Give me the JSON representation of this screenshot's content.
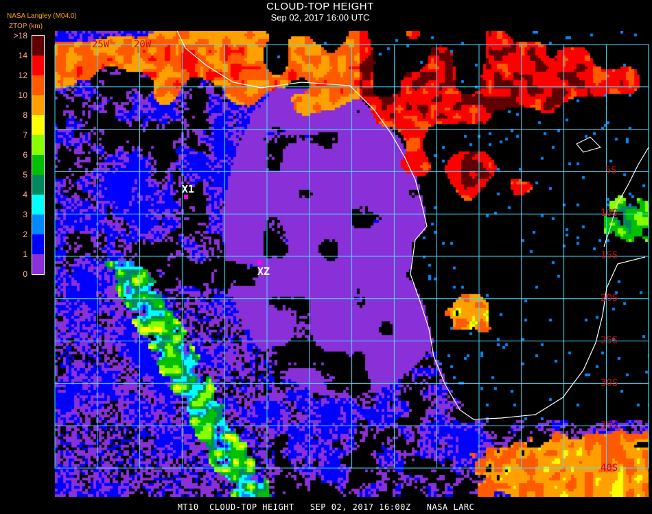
{
  "header": {
    "title": "CLOUD-TOP HEIGHT",
    "subtitle": "Sep 02, 2017 16:00 UTC"
  },
  "legend": {
    "source": "NASA Langley (M04.0)",
    "unit": "ZTOP (km)",
    "ticks": [
      ">18",
      "14",
      "12",
      "10",
      "8",
      "7",
      "6",
      "5",
      "4",
      "3",
      "2",
      "1",
      "0"
    ],
    "colors": [
      "#600000",
      "#ff0000",
      "#ff5a00",
      "#ffa000",
      "#ffff00",
      "#88ff00",
      "#00c000",
      "#008860",
      "#00ffff",
      "#0088ff",
      "#0000ff",
      "#8a30d8"
    ]
  },
  "map": {
    "grid_color": "#40e0ff",
    "coast_color": "#ffffff",
    "longitude_labels": [
      "25W",
      "20W"
    ],
    "latitude_labels": [
      "5S",
      "10S",
      "15S",
      "20S",
      "25S",
      "30S",
      "35S",
      "40S"
    ],
    "markers": [
      {
        "label": "X1",
        "color": "#ff00ff"
      },
      {
        "label": "XZ",
        "color": "#ff00ff"
      }
    ]
  },
  "caption": "MT10  CLOUD-TOP HEIGHT   SEP 02, 2017 16:00Z   NASA LARC"
}
